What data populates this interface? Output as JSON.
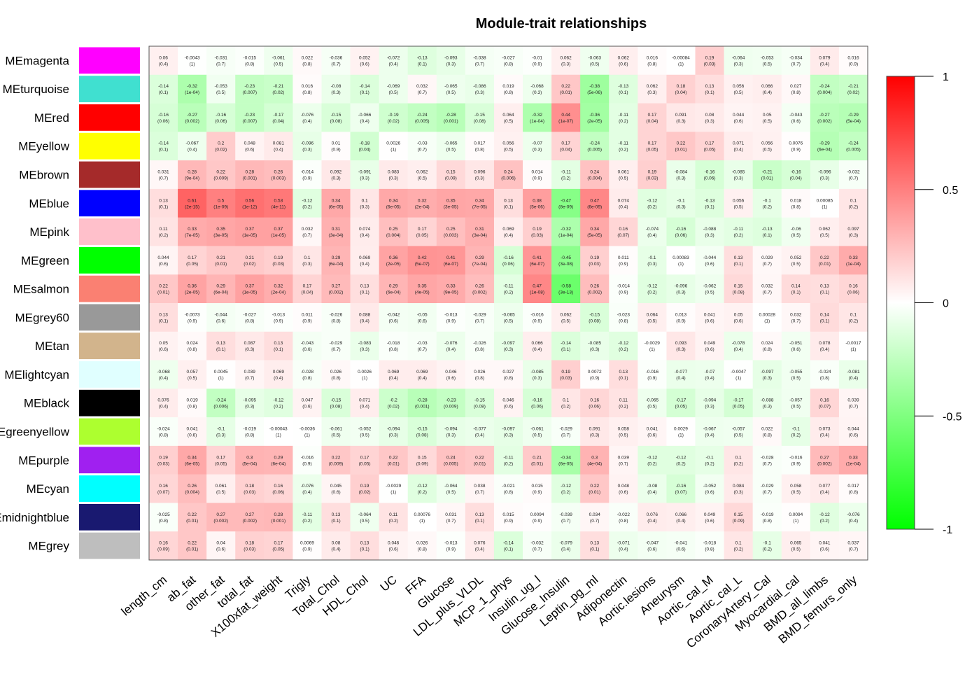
{
  "chart_data": {
    "type": "heatmap",
    "title": "Module-trait relationships",
    "rows": [
      "MEmagenta",
      "MEturquoise",
      "MEred",
      "MEyellow",
      "MEbrown",
      "MEblue",
      "MEpink",
      "MEgreen",
      "MEsalmon",
      "MEgrey60",
      "MEtan",
      "MElightcyan",
      "MEblack",
      "MEgreenyellow",
      "MEpurple",
      "MEcyan",
      "MEmidnightblue",
      "MEgrey"
    ],
    "row_colors": [
      "#ff00ff",
      "#40e0d0",
      "#ff0000",
      "#ffff00",
      "#a52a2a",
      "#0000ff",
      "#ffc0cb",
      "#00ff00",
      "#fa8072",
      "#999999",
      "#d2b48c",
      "#e0ffff",
      "#000000",
      "#adff2f",
      "#a020f0",
      "#00ffff",
      "#191970",
      "#bebebe"
    ],
    "columns": [
      "length_cm",
      "ab_fat",
      "other_fat",
      "total_fat",
      "X100xfat_weight",
      "Trigly",
      "Total_Chol",
      "HDL_Chol",
      "UC",
      "FFA",
      "Glucose",
      "LDL_plus_VLDL",
      "MCP_1_phys",
      "Insulin_ug_l",
      "Glucose_Insulin",
      "Leptin_pg_ml",
      "Adiponectin",
      "Aortic.lesions",
      "Aneurysm",
      "Aortic_cal_M",
      "Aortic_cal_L",
      "CoronaryArtery_Cal",
      "Myocardial_cal",
      "BMD_all_limbs",
      "BMD_femurs_only"
    ],
    "values": [
      [
        0.06,
        -0.0043,
        -0.031,
        -0.015,
        -0.061,
        0.022,
        -0.036,
        0.052,
        -0.072,
        -0.13,
        -0.093,
        -0.038,
        -0.027,
        -0.01,
        0.062,
        -0.063,
        0.062,
        0.016,
        -0.00084,
        0.19,
        -0.064,
        -0.053,
        -0.034,
        0.079,
        0.016
      ],
      [
        -0.14,
        -0.32,
        -0.053,
        -0.23,
        -0.21,
        0.016,
        -0.08,
        -0.14,
        -0.069,
        0.032,
        -0.065,
        -0.086,
        0.019,
        -0.068,
        0.22,
        -0.38,
        -0.13,
        0.062,
        0.18,
        0.13,
        0.056,
        0.066,
        0.027,
        -0.24,
        -0.21
      ],
      [
        -0.16,
        -0.27,
        -0.16,
        -0.23,
        -0.17,
        -0.076,
        -0.15,
        -0.066,
        -0.19,
        -0.24,
        -0.28,
        -0.15,
        0.064,
        -0.32,
        0.44,
        -0.36,
        -0.11,
        0.17,
        0.091,
        0.08,
        0.044,
        0.05,
        -0.043,
        -0.27,
        -0.29
      ],
      [
        -0.14,
        -0.067,
        0.2,
        0.048,
        0.081,
        -0.096,
        0.01,
        -0.18,
        0.0026,
        -0.03,
        -0.065,
        0.017,
        0.056,
        -0.07,
        0.17,
        -0.24,
        -0.11,
        0.17,
        0.22,
        0.17,
        0.071,
        0.056,
        0.0076,
        -0.29,
        -0.24
      ],
      [
        0.031,
        0.28,
        0.22,
        0.28,
        0.26,
        -0.014,
        0.092,
        -0.091,
        0.083,
        0.062,
        0.15,
        0.096,
        0.24,
        0.014,
        -0.11,
        0.24,
        0.061,
        0.19,
        -0.084,
        -0.16,
        -0.085,
        -0.21,
        -0.16,
        -0.096,
        -0.032
      ],
      [
        0.13,
        0.61,
        0.5,
        0.56,
        0.53,
        -0.12,
        0.34,
        0.1,
        0.34,
        0.32,
        0.35,
        0.34,
        0.13,
        0.38,
        -0.47,
        0.47,
        0.074,
        -0.12,
        -0.1,
        -0.13,
        0.056,
        -0.1,
        0.018,
        0.00085,
        0.1
      ],
      [
        0.11,
        0.33,
        0.35,
        0.37,
        0.37,
        0.032,
        0.31,
        0.074,
        0.25,
        0.17,
        0.25,
        0.31,
        0.069,
        0.19,
        -0.32,
        0.34,
        0.16,
        -0.074,
        -0.16,
        -0.088,
        -0.11,
        -0.13,
        -0.06,
        0.062,
        0.097
      ],
      [
        0.044,
        0.17,
        0.21,
        0.21,
        0.19,
        0.1,
        0.29,
        0.069,
        0.36,
        0.42,
        0.41,
        0.29,
        -0.16,
        0.41,
        -0.45,
        0.19,
        0.011,
        -0.1,
        0.00083,
        -0.044,
        0.13,
        0.029,
        0.052,
        0.22,
        0.33
      ],
      [
        0.22,
        0.36,
        0.29,
        0.37,
        0.32,
        0.17,
        0.27,
        0.13,
        0.29,
        0.35,
        0.33,
        0.26,
        -0.11,
        0.47,
        -0.58,
        0.26,
        -0.014,
        -0.12,
        -0.096,
        -0.062,
        0.15,
        0.032,
        0.14,
        0.13,
        0.16
      ],
      [
        0.13,
        -0.0073,
        -0.044,
        -0.027,
        -0.013,
        0.011,
        -0.026,
        0.088,
        -0.042,
        -0.05,
        -0.013,
        -0.029,
        -0.065,
        -0.016,
        0.062,
        -0.15,
        -0.023,
        0.064,
        0.013,
        0.041,
        0.05,
        0.00028,
        0.032,
        0.14,
        0.1
      ],
      [
        0.05,
        0.024,
        0.13,
        0.087,
        0.13,
        -0.043,
        -0.029,
        -0.083,
        -0.018,
        -0.03,
        -0.076,
        -0.026,
        -0.097,
        0.066,
        -0.14,
        -0.085,
        -0.12,
        -0.0029,
        0.093,
        0.049,
        -0.078,
        0.024,
        -0.051,
        0.078,
        -0.0017
      ],
      [
        -0.068,
        0.057,
        0.0045,
        0.039,
        0.069,
        -0.028,
        0.026,
        0.0026,
        0.069,
        0.069,
        0.046,
        0.026,
        0.027,
        -0.085,
        0.19,
        0.0072,
        0.13,
        -0.016,
        -0.077,
        -0.07,
        -0.0047,
        -0.097,
        -0.055,
        -0.024,
        -0.081
      ],
      [
        0.076,
        0.019,
        -0.24,
        -0.095,
        -0.12,
        0.047,
        -0.15,
        0.071,
        -0.2,
        -0.28,
        -0.23,
        -0.15,
        0.046,
        -0.16,
        0.1,
        0.16,
        0.11,
        -0.065,
        -0.17,
        -0.094,
        -0.17,
        -0.088,
        -0.057,
        0.16,
        0.039
      ],
      [
        -0.024,
        0.041,
        -0.1,
        -0.019,
        -0.00043,
        -0.0036,
        -0.061,
        -0.052,
        -0.094,
        -0.15,
        -0.094,
        -0.077,
        -0.097,
        -0.061,
        -0.029,
        0.091,
        0.058,
        0.041,
        0.0029,
        -0.067,
        -0.057,
        0.022,
        -0.1,
        0.073,
        0.044
      ],
      [
        0.19,
        0.34,
        0.17,
        0.3,
        0.29,
        -0.016,
        0.22,
        0.17,
        0.22,
        0.15,
        0.24,
        0.22,
        -0.11,
        0.21,
        -0.34,
        0.3,
        0.039,
        -0.12,
        -0.12,
        -0.1,
        0.1,
        -0.028,
        -0.016,
        0.27,
        0.33
      ],
      [
        0.16,
        0.26,
        0.061,
        0.18,
        0.16,
        -0.076,
        0.045,
        0.19,
        -0.0029,
        -0.12,
        -0.064,
        0.038,
        -0.021,
        0.015,
        -0.12,
        0.22,
        0.048,
        -0.08,
        -0.16,
        -0.052,
        0.084,
        -0.029,
        0.058,
        0.077,
        0.017
      ],
      [
        -0.025,
        0.22,
        0.27,
        0.27,
        0.28,
        -0.11,
        0.13,
        -0.064,
        0.11,
        0.00076,
        0.031,
        0.13,
        0.015,
        0.0094,
        -0.039,
        0.034,
        -0.022,
        0.076,
        0.066,
        0.049,
        0.15,
        -0.019,
        0.0094,
        -0.12,
        -0.076
      ],
      [
        0.16,
        0.22,
        0.04,
        0.18,
        0.17,
        0.0069,
        0.08,
        0.13,
        0.046,
        0.026,
        -0.013,
        0.076,
        -0.14,
        -0.032,
        -0.079,
        0.13,
        -0.071,
        -0.047,
        -0.041,
        -0.018,
        0.1,
        -0.1,
        0.065,
        0.041,
        0.037
      ]
    ],
    "pvalues": [
      [
        "(0.4)",
        "(1)",
        "(0.7)",
        "(0.8)",
        "(0.5)",
        "(0.8)",
        "(0.7)",
        "(0.6)",
        "(0.4)",
        "(0.1)",
        "(0.3)",
        "(0.7)",
        "(0.8)",
        "(0.9)",
        "(0.3)",
        "(0.5)",
        "(0.6)",
        "(0.8)",
        "(1)",
        "(0.03)",
        "(0.3)",
        "(0.5)",
        "(0.7)",
        "(0.4)",
        "(0.9)"
      ],
      [
        "(0.1)",
        "(1e-04)",
        "(0.5)",
        "(0.007)",
        "(0.02)",
        "(0.8)",
        "(0.3)",
        "(0.1)",
        "(0.5)",
        "(0.7)",
        "(0.5)",
        "(0.3)",
        "(0.8)",
        "(0.3)",
        "(0.01)",
        "(5e-06)",
        "(0.1)",
        "(0.3)",
        "(0.04)",
        "(0.1)",
        "(0.5)",
        "(0.4)",
        "(0.8)",
        "(0.004)",
        "(0.02)"
      ],
      [
        "(0.06)",
        "(0.002)",
        "(0.06)",
        "(0.007)",
        "(0.04)",
        "(0.4)",
        "(0.08)",
        "(0.4)",
        "(0.02)",
        "(0.005)",
        "(0.001)",
        "(0.08)",
        "(0.5)",
        "(1e-04)",
        "(1e-07)",
        "(2e-05)",
        "(0.2)",
        "(0.04)",
        "(0.3)",
        "(0.3)",
        "(0.6)",
        "(0.5)",
        "(0.6)",
        "(0.002)",
        "(5e-04)"
      ],
      [
        "(0.1)",
        "(0.4)",
        "(0.02)",
        "(0.6)",
        "(0.4)",
        "(0.3)",
        "(0.9)",
        "(0.04)",
        "(1)",
        "(0.7)",
        "(0.5)",
        "(0.8)",
        "(0.5)",
        "(0.3)",
        "(0.04)",
        "(0.005)",
        "(0.2)",
        "(0.05)",
        "(0.01)",
        "(0.05)",
        "(0.4)",
        "(0.5)",
        "(0.9)",
        "(6e-04)",
        "(0.005)"
      ],
      [
        "(0.7)",
        "(9e-04)",
        "(0.009)",
        "(0.001)",
        "(0.003)",
        "(0.9)",
        "(0.3)",
        "(0.3)",
        "(0.3)",
        "(0.5)",
        "(0.09)",
        "(0.3)",
        "(0.006)",
        "(0.9)",
        "(0.2)",
        "(0.004)",
        "(0.5)",
        "(0.03)",
        "(0.3)",
        "(0.06)",
        "(0.3)",
        "(0.01)",
        "(0.04)",
        "(0.3)",
        "(0.7)"
      ],
      [
        "(0.1)",
        "(2e-15)",
        "(1e-09)",
        "(1e-12)",
        "(4e-11)",
        "(0.2)",
        "(6e-05)",
        "(0.3)",
        "(6e-05)",
        "(2e-04)",
        "(3e-05)",
        "(7e-05)",
        "(0.1)",
        "(5e-06)",
        "(8e-09)",
        "(6e-09)",
        "(0.4)",
        "(0.2)",
        "(0.3)",
        "(0.1)",
        "(0.5)",
        "(0.2)",
        "(0.8)",
        "(1)",
        "(0.2)"
      ],
      [
        "(0.2)",
        "(7e-05)",
        "(3e-05)",
        "(1e-05)",
        "(1e-05)",
        "(0.7)",
        "(3e-04)",
        "(0.4)",
        "(0.004)",
        "(0.05)",
        "(0.003)",
        "(3e-04)",
        "(0.4)",
        "(0.03)",
        "(1e-04)",
        "(5e-05)",
        "(0.07)",
        "(0.4)",
        "(0.06)",
        "(0.3)",
        "(0.2)",
        "(0.1)",
        "(0.5)",
        "(0.5)",
        "(0.3)"
      ],
      [
        "(0.6)",
        "(0.05)",
        "(0.01)",
        "(0.02)",
        "(0.03)",
        "(0.3)",
        "(6e-04)",
        "(0.4)",
        "(2e-05)",
        "(5e-07)",
        "(6e-07)",
        "(7e-04)",
        "(0.06)",
        "(6e-07)",
        "(3e-08)",
        "(0.03)",
        "(0.9)",
        "(0.3)",
        "(1)",
        "(0.6)",
        "(0.1)",
        "(0.7)",
        "(0.5)",
        "(0.01)",
        "(1e-04)"
      ],
      [
        "(0.01)",
        "(2e-05)",
        "(6e-04)",
        "(1e-05)",
        "(2e-04)",
        "(0.04)",
        "(0.002)",
        "(0.1)",
        "(6e-04)",
        "(4e-05)",
        "(9e-05)",
        "(0.002)",
        "(0.2)",
        "(1e-08)",
        "(3e-13)",
        "(0.002)",
        "(0.9)",
        "(0.2)",
        "(0.3)",
        "(0.5)",
        "(0.08)",
        "(0.7)",
        "(0.1)",
        "(0.1)",
        "(0.06)"
      ],
      [
        "(0.1)",
        "(0.9)",
        "(0.6)",
        "(0.8)",
        "(0.9)",
        "(0.9)",
        "(0.8)",
        "(0.4)",
        "(0.6)",
        "(0.6)",
        "(0.9)",
        "(0.7)",
        "(0.5)",
        "(0.9)",
        "(0.5)",
        "(0.08)",
        "(0.8)",
        "(0.5)",
        "(0.9)",
        "(0.6)",
        "(0.6)",
        "(1)",
        "(0.7)",
        "(0.1)",
        "(0.2)"
      ],
      [
        "(0.6)",
        "(0.8)",
        "(0.1)",
        "(0.3)",
        "(0.1)",
        "(0.6)",
        "(0.7)",
        "(0.3)",
        "(0.8)",
        "(0.7)",
        "(0.4)",
        "(0.8)",
        "(0.3)",
        "(0.4)",
        "(0.1)",
        "(0.3)",
        "(0.2)",
        "(1)",
        "(0.3)",
        "(0.6)",
        "(0.4)",
        "(0.8)",
        "(0.6)",
        "(0.4)",
        "(1)"
      ],
      [
        "(0.4)",
        "(0.5)",
        "(1)",
        "(0.7)",
        "(0.4)",
        "(0.8)",
        "(0.8)",
        "(1)",
        "(0.4)",
        "(0.4)",
        "(0.6)",
        "(0.8)",
        "(0.8)",
        "(0.3)",
        "(0.03)",
        "(0.9)",
        "(0.1)",
        "(0.9)",
        "(0.4)",
        "(0.4)",
        "(1)",
        "(0.3)",
        "(0.5)",
        "(0.8)",
        "(0.4)"
      ],
      [
        "(0.4)",
        "(0.8)",
        "(0.006)",
        "(0.3)",
        "(0.2)",
        "(0.6)",
        "(0.08)",
        "(0.4)",
        "(0.02)",
        "(0.001)",
        "(0.009)",
        "(0.08)",
        "(0.6)",
        "(0.06)",
        "(0.2)",
        "(0.06)",
        "(0.2)",
        "(0.5)",
        "(0.05)",
        "(0.3)",
        "(0.05)",
        "(0.3)",
        "(0.5)",
        "(0.07)",
        "(0.7)"
      ],
      [
        "(0.8)",
        "(0.6)",
        "(0.3)",
        "(0.8)",
        "(1)",
        "(1)",
        "(0.5)",
        "(0.5)",
        "(0.3)",
        "(0.08)",
        "(0.3)",
        "(0.4)",
        "(0.3)",
        "(0.5)",
        "(0.7)",
        "(0.3)",
        "(0.5)",
        "(0.6)",
        "(1)",
        "(0.4)",
        "(0.5)",
        "(0.8)",
        "(0.2)",
        "(0.4)",
        "(0.6)"
      ],
      [
        "(0.03)",
        "(6e-05)",
        "(0.05)",
        "(5e-04)",
        "(6e-04)",
        "(0.9)",
        "(0.009)",
        "(0.05)",
        "(0.01)",
        "(0.09)",
        "(0.005)",
        "(0.01)",
        "(0.2)",
        "(0.01)",
        "(6e-05)",
        "(4e-04)",
        "(0.7)",
        "(0.2)",
        "(0.2)",
        "(0.2)",
        "(0.2)",
        "(0.7)",
        "(0.9)",
        "(0.002)",
        "(1e-04)"
      ],
      [
        "(0.07)",
        "(0.004)",
        "(0.5)",
        "(0.03)",
        "(0.06)",
        "(0.4)",
        "(0.6)",
        "(0.02)",
        "(1)",
        "(0.2)",
        "(0.5)",
        "(0.7)",
        "(0.8)",
        "(0.9)",
        "(0.2)",
        "(0.01)",
        "(0.6)",
        "(0.4)",
        "(0.07)",
        "(0.6)",
        "(0.3)",
        "(0.7)",
        "(0.5)",
        "(0.4)",
        "(0.8)"
      ],
      [
        "(0.8)",
        "(0.01)",
        "(0.002)",
        "(0.002)",
        "(0.001)",
        "(0.2)",
        "(0.1)",
        "(0.5)",
        "(0.2)",
        "(1)",
        "(0.7)",
        "(0.1)",
        "(0.9)",
        "(0.9)",
        "(0.7)",
        "(0.7)",
        "(0.8)",
        "(0.4)",
        "(0.4)",
        "(0.6)",
        "(0.09)",
        "(0.8)",
        "(1)",
        "(0.2)",
        "(0.4)"
      ],
      [
        "(0.09)",
        "(0.01)",
        "(0.6)",
        "(0.03)",
        "(0.05)",
        "(0.9)",
        "(0.4)",
        "(0.1)",
        "(0.6)",
        "(0.8)",
        "(0.9)",
        "(0.4)",
        "(0.1)",
        "(0.7)",
        "(0.4)",
        "(0.1)",
        "(0.4)",
        "(0.6)",
        "(0.6)",
        "(0.8)",
        "(0.2)",
        "(0.2)",
        "(0.5)",
        "(0.6)",
        "(0.7)"
      ]
    ],
    "colorbar": {
      "ticks": [
        1,
        0.5,
        0,
        -0.5,
        -1
      ],
      "tick_labels": [
        "1",
        "0.5",
        "0",
        "-0.5",
        "-1"
      ],
      "low_color": "#00ff00",
      "mid_color": "#ffffff",
      "high_color": "#ff0000"
    },
    "value_range": [
      -1,
      1
    ]
  }
}
